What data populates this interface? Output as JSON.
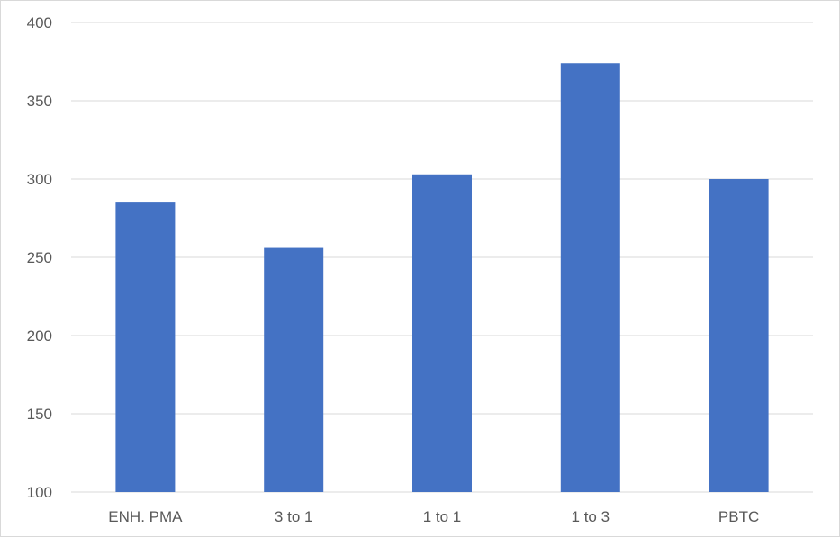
{
  "chart_data": {
    "type": "bar",
    "categories": [
      "ENH. PMA",
      "3 to 1",
      "1 to 1",
      "1 to 3",
      "PBTC"
    ],
    "values": [
      285,
      256,
      303,
      374,
      300
    ],
    "yticks": [
      100,
      150,
      200,
      250,
      300,
      350,
      400
    ],
    "ylim": [
      100,
      400
    ],
    "grid": true,
    "colors": {
      "bar": "#4472C4",
      "grid": "#d9d9d9",
      "text": "#595959"
    }
  }
}
